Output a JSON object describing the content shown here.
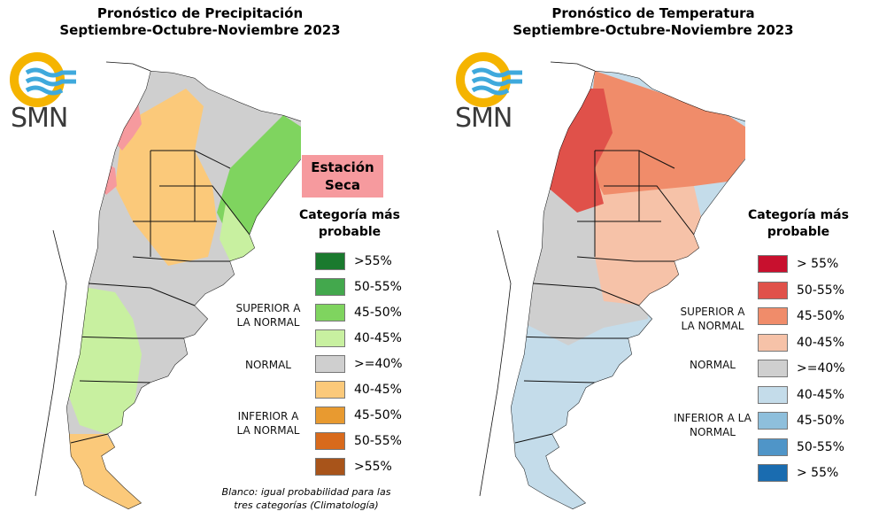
{
  "precipitation": {
    "title_line1": "Pronóstico de Precipitación",
    "title_line2": "Septiembre-Octubre-Noviembre 2023",
    "logo_text": "SMN",
    "dry_station_label": "Estación Seca",
    "legend_title": "Categoría más probable",
    "legend_items": [
      {
        "label": ">55%",
        "color": "#1a7a2e"
      },
      {
        "label": "50-55%",
        "color": "#43a84d"
      },
      {
        "label": "45-50%",
        "color": "#7fd45f"
      },
      {
        "label": "40-45%",
        "color": "#c8f0a0"
      },
      {
        "label": ">=40%",
        "color": "#cfcfcf"
      },
      {
        "label": "40-45%",
        "color": "#fbc97a"
      },
      {
        "label": "45-50%",
        "color": "#e89a30"
      },
      {
        "label": "50-55%",
        "color": "#d86a1c"
      },
      {
        "label": ">55%",
        "color": "#a8541a"
      }
    ],
    "category_labels": {
      "superior": "SUPERIOR A LA NORMAL",
      "normal": "NORMAL",
      "inferior": "INFERIOR A LA NORMAL"
    },
    "note": "Blanco: igual probabilidad para las tres categorías (Climatología)"
  },
  "temperature": {
    "title_line1": "Pronóstico de Temperatura",
    "title_line2": "Septiembre-Octubre-Noviembre 2023",
    "logo_text": "SMN",
    "legend_title": "Categoría más probable",
    "legend_items": [
      {
        "label": "> 55%",
        "color": "#c8102e"
      },
      {
        "label": "50-55%",
        "color": "#e0514a"
      },
      {
        "label": "45-50%",
        "color": "#f08c6a"
      },
      {
        "label": "40-45%",
        "color": "#f6c2a8"
      },
      {
        "label": ">=40%",
        "color": "#cfcfcf"
      },
      {
        "label": "40-45%",
        "color": "#c4dcea"
      },
      {
        "label": "45-50%",
        "color": "#8ebfdc"
      },
      {
        "label": "50-55%",
        "color": "#4f95c8"
      },
      {
        "label": "> 55%",
        "color": "#1a6cb0"
      }
    ],
    "category_labels": {
      "superior": "SUPERIOR A LA NORMAL",
      "normal": "NORMAL",
      "inferior": "INFERIOR A LA NORMAL"
    }
  },
  "colors": {
    "logo_ring": "#f5b400",
    "logo_waves": "#3fa9dc",
    "map_outline": "#111111"
  }
}
